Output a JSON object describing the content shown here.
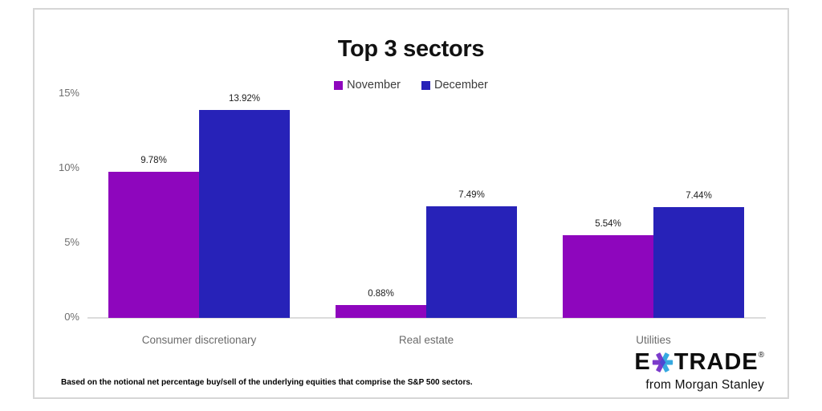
{
  "chart_data": {
    "type": "bar",
    "title": "Top 3 sectors",
    "categories": [
      "Consumer discretionary",
      "Real estate",
      "Utilities"
    ],
    "series": [
      {
        "name": "November",
        "color": "#8E06BD",
        "values": [
          9.78,
          0.88,
          5.54
        ],
        "value_labels": [
          "9.78%",
          "0.88%",
          "5.54%"
        ]
      },
      {
        "name": "December",
        "color": "#2722B8",
        "values": [
          13.92,
          7.49,
          7.44
        ],
        "value_labels": [
          "13.92%",
          "7.49%",
          "7.44%"
        ]
      }
    ],
    "ylim": [
      0,
      15
    ],
    "y_ticks": [
      {
        "value": 0,
        "label": "0%"
      },
      {
        "value": 5,
        "label": "5%"
      },
      {
        "value": 10,
        "label": "10%"
      },
      {
        "value": 15,
        "label": "15%"
      }
    ],
    "grid": false,
    "legend_position": "top-center",
    "xlabel": "",
    "ylabel": ""
  },
  "footnote": "Based on the notional net percentage buy/sell of the underlying equities that comprise the S&P 500 sectors.",
  "logo": {
    "word_start": "E",
    "word_end": "TRADE",
    "registered": "®",
    "tagline": "from Morgan Stanley",
    "asterisk_left_color": "#7B3BCB",
    "asterisk_right_color": "#36A9E0",
    "asterisk_center_color": "#4B49D2"
  }
}
